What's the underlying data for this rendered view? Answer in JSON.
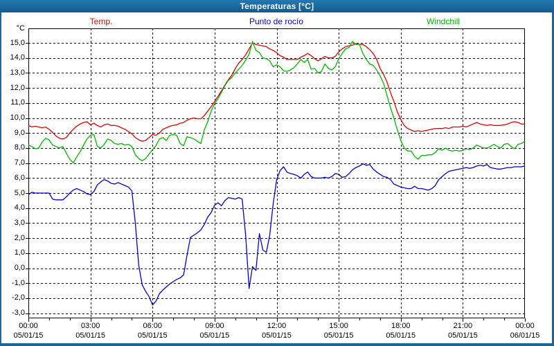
{
  "window": {
    "title": "Temperaturas [°C]"
  },
  "legend": {
    "items": [
      {
        "label": "Temp.",
        "color": "#dd0000",
        "x": 146
      },
      {
        "label": "Punto de rocío",
        "color": "#0000cc",
        "x": 399
      },
      {
        "label": "Windchill",
        "color": "#00b400",
        "x": 640
      }
    ]
  },
  "chart_data": {
    "type": "line",
    "title": "Temperaturas [°C]",
    "xlabel": "",
    "ylabel": "°C",
    "ylim": [
      -3.3,
      16.0
    ],
    "x_hours_range": [
      0,
      24
    ],
    "grid": true,
    "legend_position": "top",
    "decimal_separator": ",",
    "yticks": [
      {
        "value": 15,
        "label": "15,0"
      },
      {
        "value": 14,
        "label": "14,0"
      },
      {
        "value": 13,
        "label": "13,0"
      },
      {
        "value": 12,
        "label": "12,0"
      },
      {
        "value": 11,
        "label": "11,0"
      },
      {
        "value": 10,
        "label": "10,0"
      },
      {
        "value": 9,
        "label": "9,0"
      },
      {
        "value": 8,
        "label": "8,0"
      },
      {
        "value": 7,
        "label": "7,0"
      },
      {
        "value": 6,
        "label": "6,0"
      },
      {
        "value": 5,
        "label": "5,0"
      },
      {
        "value": 4,
        "label": "4,0"
      },
      {
        "value": 3,
        "label": "3,0"
      },
      {
        "value": 2,
        "label": "2,0"
      },
      {
        "value": 1,
        "label": "1,0"
      },
      {
        "value": 0,
        "label": "0,0"
      },
      {
        "value": -1,
        "label": "-1,0"
      },
      {
        "value": -2,
        "label": "-2,0"
      },
      {
        "value": -3,
        "label": "-3,0"
      }
    ],
    "xticks": [
      {
        "hour": 0,
        "time": "00:00",
        "date": "05/01/15"
      },
      {
        "hour": 3,
        "time": "03:00",
        "date": "05/01/15"
      },
      {
        "hour": 6,
        "time": "06:00",
        "date": "05/01/15"
      },
      {
        "hour": 9,
        "time": "09:00",
        "date": "05/01/15"
      },
      {
        "hour": 12,
        "time": "12:00",
        "date": "05/01/15"
      },
      {
        "hour": 15,
        "time": "15:00",
        "date": "05/01/15"
      },
      {
        "hour": 18,
        "time": "18:00",
        "date": "05/01/15"
      },
      {
        "hour": 21,
        "time": "21:00",
        "date": "05/01/15"
      },
      {
        "hour": 24,
        "time": "00:00",
        "date": "06/01/15"
      }
    ],
    "minor_tick_every_hours": 1,
    "major_tick_every_hours": 3,
    "series_step_minutes": 10,
    "series": [
      {
        "id": "temperature",
        "name": "Temp.",
        "color": "#dd0000",
        "values": [
          9.5,
          9.4,
          9.45,
          9.4,
          9.35,
          9.4,
          9.25,
          9.05,
          8.8,
          8.65,
          8.6,
          8.7,
          9.0,
          9.25,
          9.45,
          9.6,
          9.7,
          9.75,
          9.55,
          9.65,
          9.5,
          9.4,
          9.55,
          9.6,
          9.5,
          9.5,
          9.45,
          9.35,
          9.25,
          9.1,
          8.95,
          8.7,
          8.55,
          8.45,
          8.5,
          8.7,
          8.9,
          8.85,
          9.0,
          9.25,
          9.35,
          9.45,
          9.5,
          9.55,
          9.65,
          9.7,
          9.85,
          9.95,
          10.0,
          9.95,
          9.95,
          10.15,
          10.45,
          10.75,
          11.1,
          11.45,
          11.8,
          12.2,
          12.55,
          12.85,
          13.3,
          13.65,
          13.9,
          14.2,
          14.6,
          15.0,
          14.9,
          14.85,
          14.8,
          14.75,
          14.6,
          14.5,
          14.35,
          14.15,
          14.05,
          13.9,
          13.9,
          13.9,
          13.9,
          14.05,
          14.15,
          14.3,
          14.15,
          13.95,
          13.8,
          13.95,
          14.1,
          14.0,
          14.0,
          14.1,
          14.4,
          14.6,
          14.75,
          14.8,
          14.85,
          14.95,
          14.9,
          14.9,
          14.75,
          14.55,
          14.3,
          13.9,
          13.3,
          12.9,
          12.4,
          11.7,
          11.1,
          10.4,
          9.9,
          9.5,
          9.3,
          9.2,
          9.1,
          9.15,
          9.1,
          9.15,
          9.2,
          9.25,
          9.3,
          9.3,
          9.3,
          9.35,
          9.3,
          9.4,
          9.4,
          9.4,
          9.45,
          9.4,
          9.5,
          9.6,
          9.7,
          9.6,
          9.55,
          9.5,
          9.55,
          9.5,
          9.5,
          9.5,
          9.55,
          9.6,
          9.7,
          9.75,
          9.7,
          9.6,
          9.6
        ]
      },
      {
        "id": "dew-point",
        "name": "Punto de rocío",
        "color": "#0000cc",
        "values": [
          4.9,
          5.05,
          5.0,
          5.0,
          5.0,
          5.0,
          5.0,
          4.6,
          4.55,
          4.55,
          4.55,
          4.75,
          5.0,
          5.2,
          5.3,
          5.2,
          5.1,
          4.95,
          4.9,
          5.1,
          5.55,
          5.75,
          5.9,
          5.8,
          5.65,
          5.6,
          5.7,
          5.6,
          5.5,
          5.4,
          5.15,
          3.0,
          0.2,
          -1.1,
          -1.55,
          -1.9,
          -2.45,
          -2.2,
          -1.7,
          -1.45,
          -1.25,
          -1.05,
          -0.9,
          -0.75,
          -0.65,
          -0.45,
          0.85,
          2.05,
          2.2,
          2.35,
          2.55,
          2.9,
          3.4,
          3.7,
          4.2,
          4.35,
          4.15,
          4.5,
          4.7,
          4.65,
          4.6,
          4.7,
          4.6,
          2.2,
          -1.35,
          0.1,
          -0.15,
          2.3,
          1.2,
          1.05,
          2.2,
          4.3,
          5.9,
          6.5,
          6.75,
          6.4,
          6.3,
          6.25,
          6.15,
          6.0,
          6.25,
          6.4,
          6.1,
          6.0,
          6.0,
          6.0,
          6.05,
          6.0,
          6.1,
          6.3,
          6.25,
          6.05,
          6.1,
          6.3,
          6.55,
          6.7,
          6.8,
          6.95,
          6.85,
          6.9,
          6.6,
          6.4,
          6.25,
          6.1,
          6.05,
          5.9,
          5.6,
          5.5,
          5.4,
          5.35,
          5.3,
          5.3,
          5.45,
          5.3,
          5.3,
          5.25,
          5.2,
          5.3,
          5.5,
          5.9,
          6.1,
          6.3,
          6.45,
          6.5,
          6.55,
          6.6,
          6.65,
          6.7,
          6.65,
          6.7,
          6.8,
          6.85,
          6.8,
          6.9,
          6.7,
          6.65,
          6.6,
          6.6,
          6.65,
          6.7,
          6.7,
          6.75,
          6.75,
          6.75,
          6.8
        ]
      },
      {
        "id": "windchill",
        "name": "Windchill",
        "color": "#00b400",
        "values": [
          8.2,
          8.1,
          7.95,
          8.0,
          8.4,
          8.65,
          8.55,
          8.2,
          8.1,
          8.0,
          8.1,
          7.65,
          7.25,
          7.0,
          7.4,
          7.75,
          8.2,
          8.6,
          8.85,
          8.9,
          8.1,
          8.0,
          8.25,
          8.6,
          8.5,
          8.3,
          8.25,
          8.3,
          8.2,
          8.25,
          8.1,
          7.55,
          7.3,
          7.15,
          7.3,
          7.6,
          7.9,
          8.15,
          8.6,
          8.7,
          8.5,
          8.85,
          8.9,
          8.85,
          8.3,
          8.15,
          8.75,
          8.7,
          8.6,
          8.45,
          8.3,
          9.2,
          9.75,
          10.45,
          10.95,
          11.3,
          11.7,
          12.15,
          12.5,
          12.7,
          13.0,
          13.25,
          13.5,
          13.85,
          14.25,
          15.1,
          14.5,
          14.35,
          14.0,
          13.95,
          13.8,
          13.4,
          13.55,
          13.4,
          13.15,
          13.1,
          13.2,
          13.35,
          13.6,
          13.9,
          13.7,
          13.9,
          13.25,
          13.3,
          13.0,
          13.1,
          13.6,
          13.3,
          13.2,
          13.4,
          13.95,
          14.3,
          14.6,
          14.7,
          15.1,
          14.9,
          14.9,
          14.3,
          13.9,
          13.6,
          13.5,
          13.2,
          12.8,
          12.3,
          11.5,
          10.7,
          10.0,
          9.2,
          8.5,
          8.0,
          7.8,
          7.8,
          7.45,
          7.25,
          7.5,
          7.5,
          7.55,
          7.55,
          7.7,
          7.95,
          7.85,
          8.0,
          7.85,
          7.8,
          7.85,
          7.8,
          7.85,
          7.95,
          7.9,
          8.0,
          8.2,
          8.1,
          8.0,
          8.0,
          8.1,
          8.25,
          8.1,
          8.0,
          8.25,
          8.3,
          8.1,
          7.95,
          8.25,
          8.3,
          8.45
        ]
      }
    ]
  }
}
